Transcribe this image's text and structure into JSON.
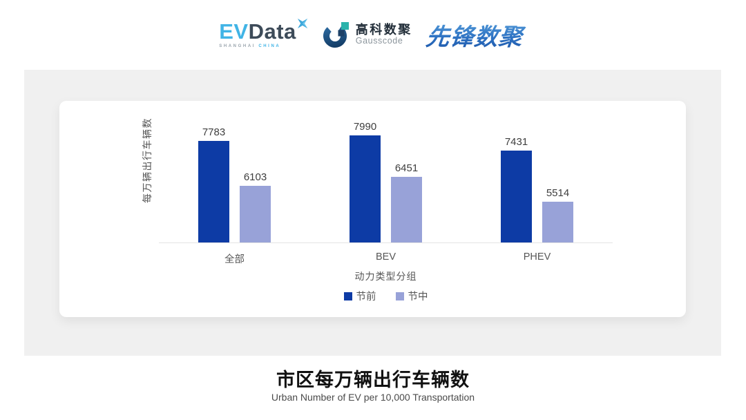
{
  "header": {
    "evdata": {
      "ev": "EV",
      "data": "Data",
      "sub_left": "SHANGHAI",
      "sub_right": "CHINA"
    },
    "gausscode": {
      "cn": "高科数聚",
      "en": "Gausscode"
    },
    "pioneer": {
      "text": "先锋数聚"
    }
  },
  "chart_data": {
    "type": "bar",
    "categories": [
      "全部",
      "BEV",
      "PHEV"
    ],
    "series": [
      {
        "name": "节前",
        "color": "#0d3ba5",
        "values": [
          7783,
          7990,
          7431
        ]
      },
      {
        "name": "节中",
        "color": "#98a2d8",
        "values": [
          6103,
          6451,
          5514
        ]
      }
    ],
    "xlabel": "动力类型分组",
    "ylabel": "每万辆出行车辆数",
    "ylim_estimated": [
      4000,
      9300
    ],
    "grid": false,
    "legend_position": "bottom",
    "value_labels": true,
    "axis_line_color": "#e4e4e4"
  },
  "footer": {
    "title": "市区每万辆出行车辆数",
    "subtitle": "Urban Number of EV per 10,000 Transportation"
  }
}
